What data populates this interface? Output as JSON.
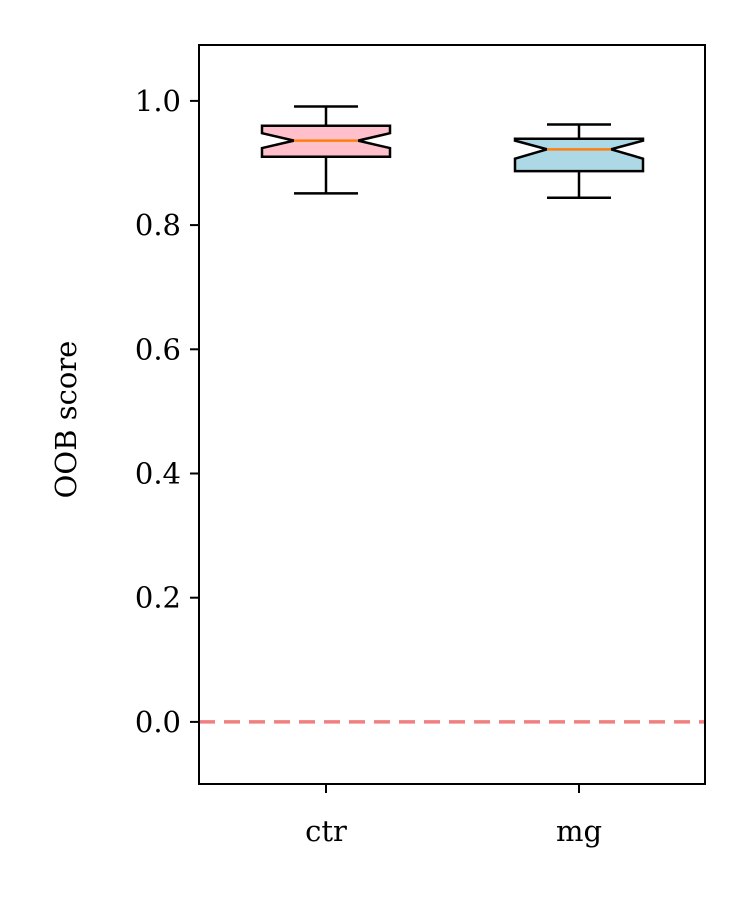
{
  "chart_data": {
    "type": "box",
    "title": "",
    "xlabel": "",
    "ylabel": "OOB score",
    "ylim": [
      -0.1,
      1.09
    ],
    "yticks": [
      0.0,
      0.2,
      0.4,
      0.6,
      0.8,
      1.0
    ],
    "ytick_labels": [
      "0.0",
      "0.2",
      "0.4",
      "0.6",
      "0.8",
      "1.0"
    ],
    "categories": [
      "ctr",
      "mg"
    ],
    "notched": true,
    "boxes": [
      {
        "category": "ctr",
        "whisker_low": 0.851,
        "q1": 0.91,
        "median": 0.936,
        "q3": 0.96,
        "whisker_high": 0.991,
        "notch_low": 0.924,
        "notch_high": 0.948,
        "fill": "#ffc0cb"
      },
      {
        "category": "mg",
        "whisker_low": 0.844,
        "q1": 0.887,
        "median": 0.922,
        "q3": 0.939,
        "whisker_high": 0.962,
        "notch_low": 0.907,
        "notch_high": 0.936,
        "fill": "#add8e6"
      }
    ],
    "median_color": "#ff7f0e",
    "reference_line": {
      "y": 0.0,
      "color": "#f08080",
      "style": "dashed"
    },
    "grid": false,
    "legend": "none"
  }
}
